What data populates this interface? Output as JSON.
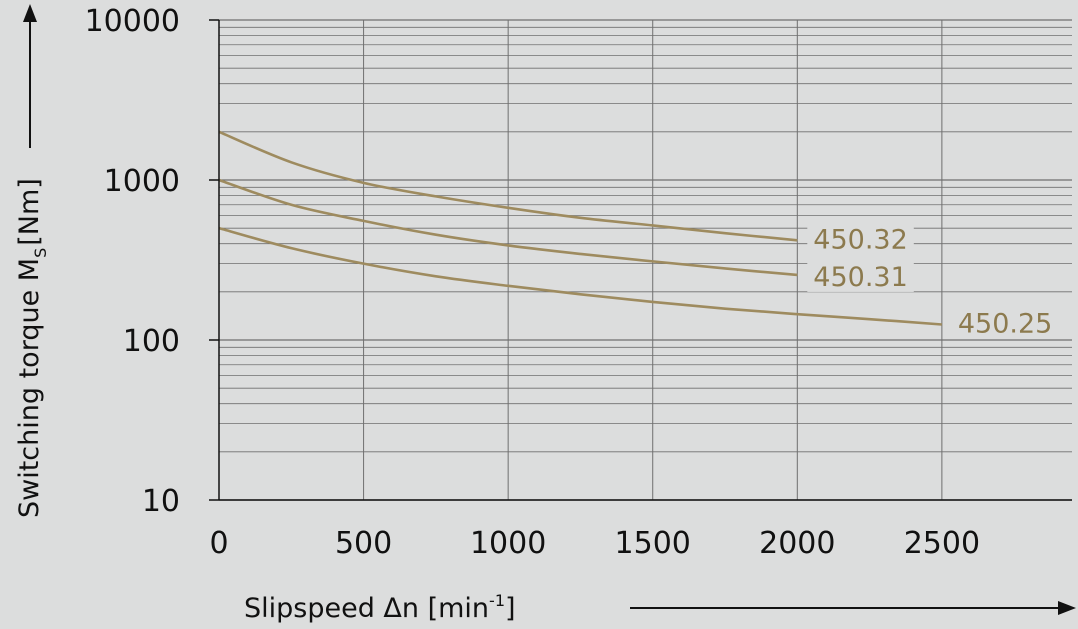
{
  "chart_data": {
    "type": "line",
    "x_label_main": "Slipspeed Δn [min",
    "x_label_sup": "-1",
    "x_label_end": "]",
    "y_label_main": "Switching torque M",
    "y_label_sub": "S",
    "y_label_end": "[Nm]",
    "y_scale": "log",
    "xlim": [
      0,
      2950
    ],
    "ylim": [
      10,
      10000
    ],
    "x_ticks": [
      0,
      500,
      1000,
      1500,
      2000,
      2500
    ],
    "x_tick_labels": [
      "0",
      "500",
      "1000",
      "1500",
      "2000",
      "2500"
    ],
    "y_ticks": [
      10,
      100,
      1000,
      10000
    ],
    "y_tick_labels": [
      "10",
      "100",
      "1000",
      "10000"
    ],
    "grid": true,
    "series": [
      {
        "name": "450.32",
        "x": [
          0,
          250,
          500,
          750,
          1000,
          1250,
          1500,
          1750,
          2000
        ],
        "y": [
          2000,
          1290,
          960,
          790,
          670,
          580,
          520,
          465,
          420
        ]
      },
      {
        "name": "450.31",
        "x": [
          0,
          250,
          500,
          750,
          1000,
          1250,
          1500,
          1750,
          2000
        ],
        "y": [
          1000,
          700,
          555,
          455,
          390,
          345,
          310,
          280,
          255
        ]
      },
      {
        "name": "450.25",
        "x": [
          0,
          250,
          500,
          750,
          1000,
          1250,
          1500,
          1750,
          2000,
          2250,
          2500
        ],
        "y": [
          500,
          375,
          300,
          250,
          218,
          193,
          173,
          157,
          145,
          135,
          125
        ]
      }
    ]
  },
  "colors": {
    "background": "#dcdddd",
    "series_line": "#9e8b5f",
    "series_label": "#8c7a4e",
    "grid": "#6f6f6f",
    "text": "#111111"
  }
}
